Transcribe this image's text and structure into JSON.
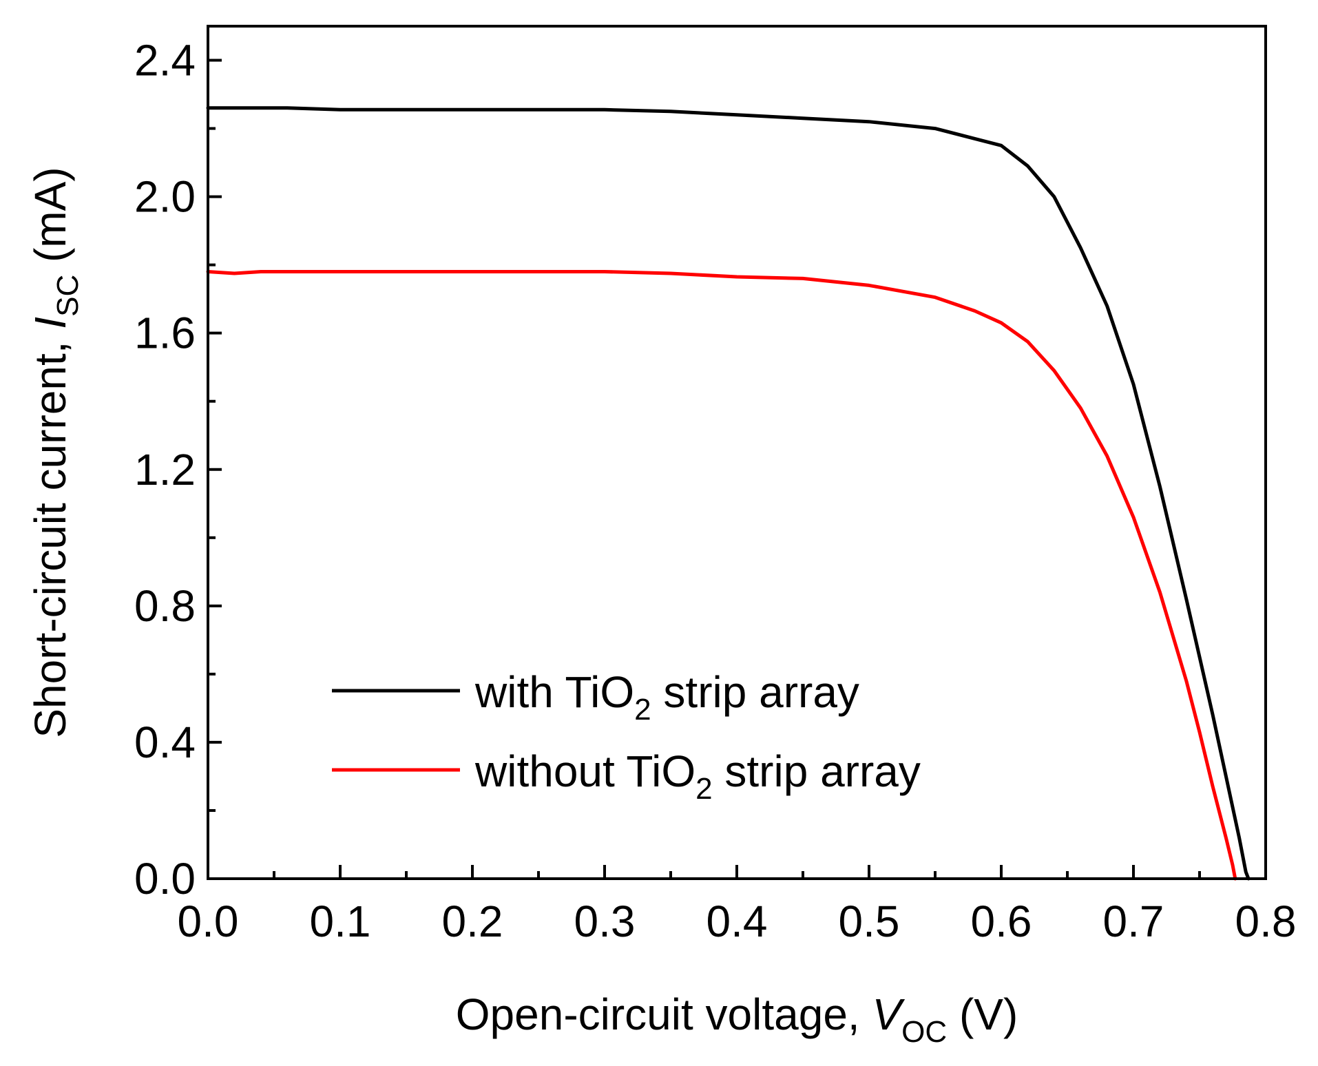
{
  "chart_data": {
    "type": "line",
    "xlabel": {
      "main": "Open-circuit voltage, ",
      "var": "V",
      "sub": "OC",
      "unit": " (V)"
    },
    "ylabel": {
      "main": "Short-circuit current, ",
      "var": "I",
      "sub": "SC",
      "unit": " (mA)"
    },
    "xlim": [
      0.0,
      0.8
    ],
    "ylim": [
      0.0,
      2.5
    ],
    "xticks": [
      0.0,
      0.1,
      0.2,
      0.3,
      0.4,
      0.5,
      0.6,
      0.7,
      0.8
    ],
    "xtick_labels": [
      "0.0",
      "0.1",
      "0.2",
      "0.3",
      "0.4",
      "0.5",
      "0.6",
      "0.7",
      "0.8"
    ],
    "yticks": [
      0.0,
      0.4,
      0.8,
      1.2,
      1.6,
      2.0,
      2.4
    ],
    "ytick_labels": [
      "0.0",
      "0.4",
      "0.8",
      "1.2",
      "1.6",
      "2.0",
      "2.4"
    ],
    "x_minor_step": 0.05,
    "y_minor_step": 0.2,
    "legend_position": "lower-center",
    "series": [
      {
        "name_pre": "with TiO",
        "name_sub": "2",
        "name_post": " strip array",
        "color": "#000000",
        "x": [
          0.0,
          0.02,
          0.04,
          0.06,
          0.1,
          0.15,
          0.2,
          0.25,
          0.3,
          0.35,
          0.4,
          0.45,
          0.5,
          0.55,
          0.58,
          0.6,
          0.62,
          0.64,
          0.66,
          0.68,
          0.7,
          0.72,
          0.74,
          0.76,
          0.77,
          0.78,
          0.785,
          0.787
        ],
        "y": [
          2.26,
          2.26,
          2.26,
          2.26,
          2.255,
          2.255,
          2.255,
          2.255,
          2.255,
          2.25,
          2.24,
          2.23,
          2.22,
          2.2,
          2.17,
          2.15,
          2.09,
          2.0,
          1.85,
          1.68,
          1.45,
          1.15,
          0.82,
          0.48,
          0.3,
          0.12,
          0.02,
          0.0
        ]
      },
      {
        "name_pre": "without TiO",
        "name_sub": "2",
        "name_post": " strip array",
        "color": "#ff0000",
        "x": [
          0.0,
          0.02,
          0.04,
          0.06,
          0.1,
          0.15,
          0.2,
          0.25,
          0.3,
          0.35,
          0.4,
          0.45,
          0.5,
          0.55,
          0.58,
          0.6,
          0.62,
          0.64,
          0.66,
          0.68,
          0.7,
          0.72,
          0.74,
          0.75,
          0.76,
          0.77,
          0.775,
          0.777
        ],
        "y": [
          1.78,
          1.775,
          1.78,
          1.78,
          1.78,
          1.78,
          1.78,
          1.78,
          1.78,
          1.775,
          1.765,
          1.76,
          1.74,
          1.705,
          1.665,
          1.63,
          1.575,
          1.49,
          1.38,
          1.24,
          1.06,
          0.84,
          0.58,
          0.43,
          0.27,
          0.12,
          0.04,
          0.0
        ]
      }
    ]
  }
}
